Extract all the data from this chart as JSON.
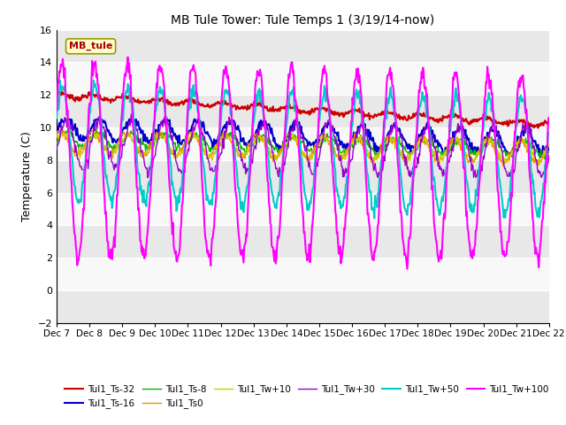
{
  "title": "MB Tule Tower: Tule Temps 1 (3/19/14-now)",
  "ylabel": "Temperature (C)",
  "ylim": [
    -2,
    16
  ],
  "yticks": [
    -2,
    0,
    2,
    4,
    6,
    8,
    10,
    12,
    14,
    16
  ],
  "xtick_labels": [
    "Dec 7",
    "Dec 8",
    "Dec 9",
    "Dec 10",
    "Dec 11",
    "Dec 12",
    "Dec 13",
    "Dec 14",
    "Dec 15",
    "Dec 16",
    "Dec 17",
    "Dec 18",
    "Dec 19",
    "Dec 20",
    "Dec 21",
    "Dec 22"
  ],
  "series": {
    "Tul1_Ts-32": {
      "color": "#cc0000",
      "lw": 1.5
    },
    "Tul1_Ts-16": {
      "color": "#0000cc",
      "lw": 1.5
    },
    "Tul1_Ts-8": {
      "color": "#00bb00",
      "lw": 1.0
    },
    "Tul1_Ts0": {
      "color": "#ff8800",
      "lw": 1.0
    },
    "Tul1_Tw+10": {
      "color": "#cccc00",
      "lw": 1.0
    },
    "Tul1_Tw+30": {
      "color": "#9900cc",
      "lw": 1.0
    },
    "Tul1_Tw+50": {
      "color": "#00cccc",
      "lw": 1.5
    },
    "Tul1_Tw+100": {
      "color": "#ff00ff",
      "lw": 1.5
    }
  },
  "bg_color": "#ffffff",
  "grid_color": "#e0e0e0"
}
